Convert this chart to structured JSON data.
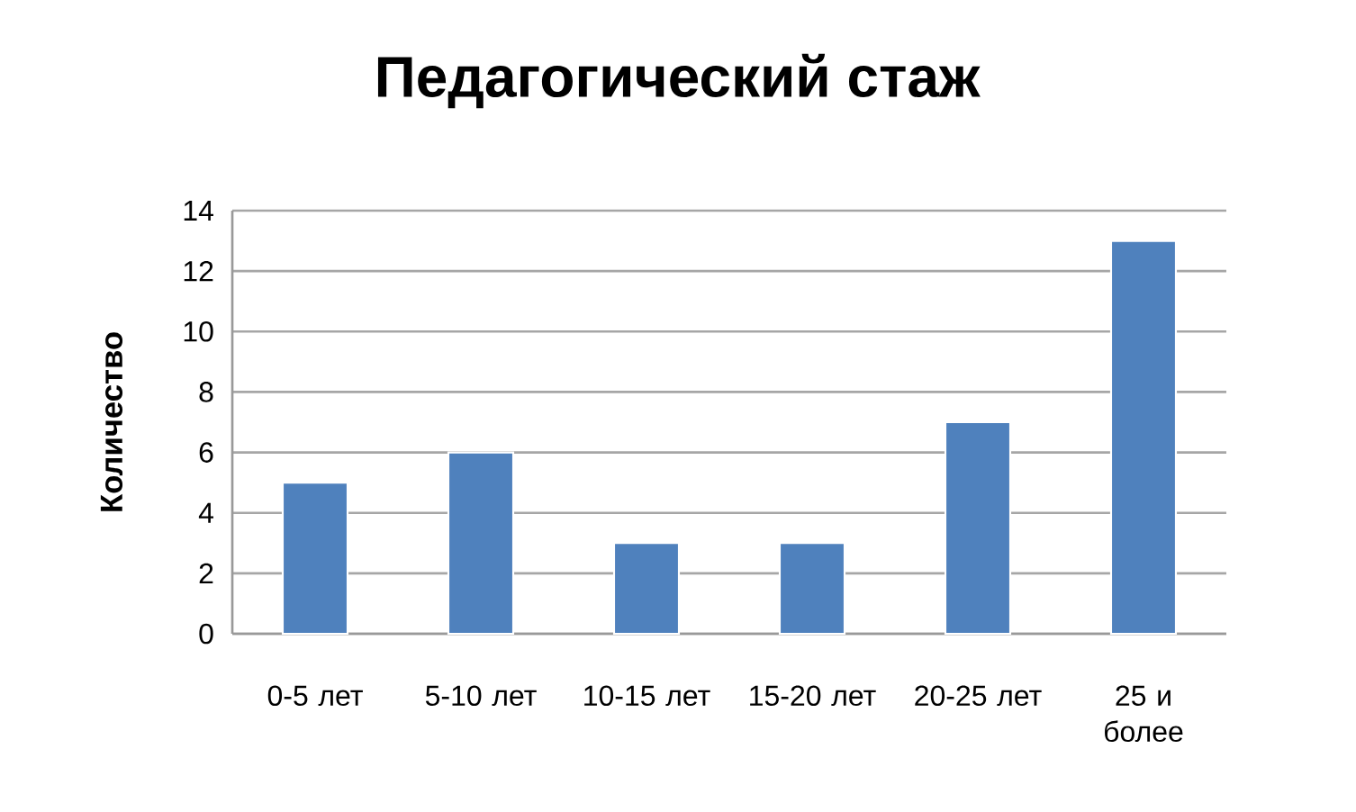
{
  "chart_data": {
    "type": "bar",
    "title": "Педагогический стаж",
    "ylabel": "Количество",
    "categories": [
      "0-5 лет",
      "5-10 лет",
      "10-15 лет",
      "15-20 лет",
      "20-25 лет",
      "25 и более"
    ],
    "values": [
      5,
      6,
      3,
      3,
      7,
      13
    ],
    "color": "#4f81bd",
    "ylim": [
      0,
      14
    ],
    "yticks": [
      0,
      2,
      4,
      6,
      8,
      10,
      12,
      14
    ],
    "grid": "y"
  }
}
